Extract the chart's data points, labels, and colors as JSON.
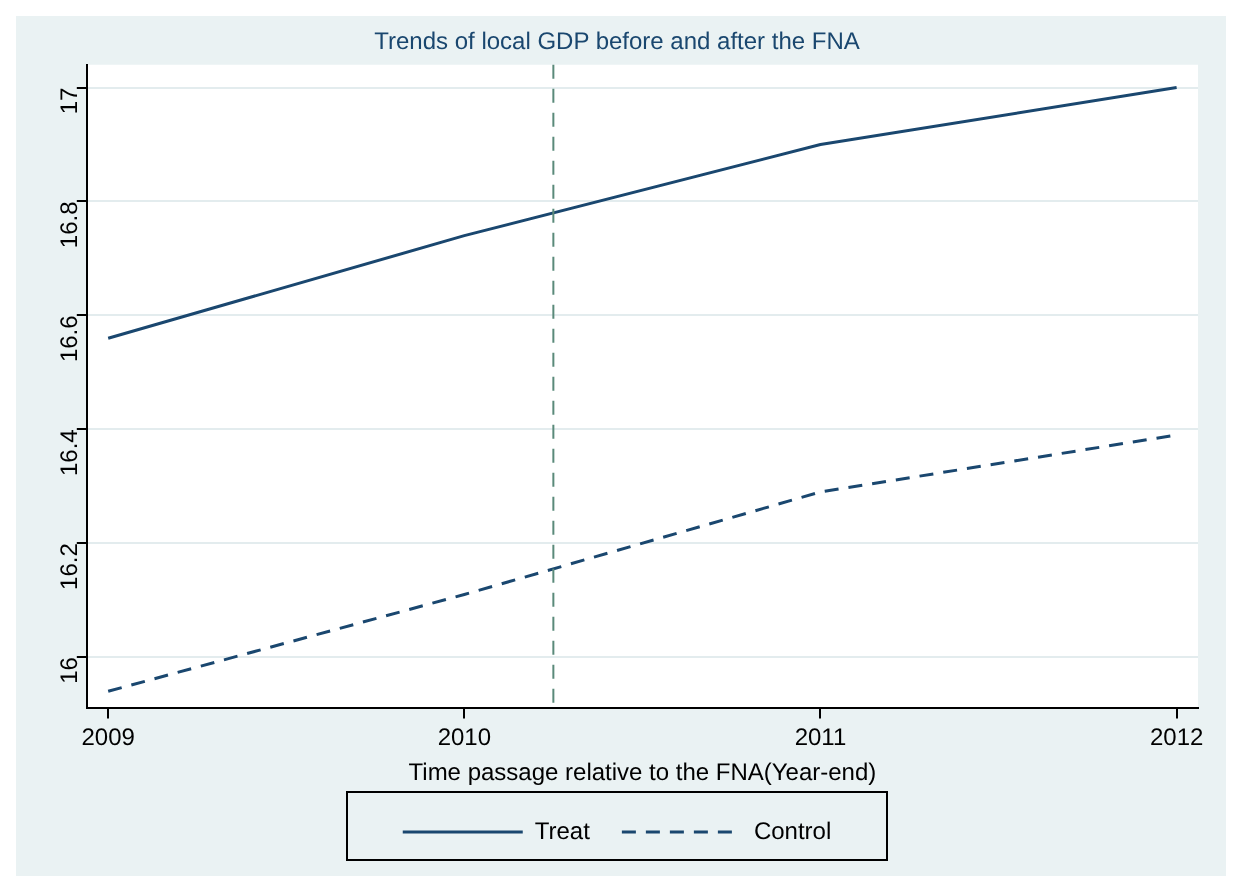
{
  "chart_data": {
    "type": "line",
    "title": "Trends of local GDP before and after the FNA",
    "xlabel": "Time passage relative to the FNA(Year-end)",
    "x": [
      2009,
      2010,
      2011,
      2012
    ],
    "series": [
      {
        "name": "Treat",
        "color": "#1a476f",
        "line_style": "solid",
        "values": [
          16.56,
          16.74,
          16.9,
          17.0
        ]
      },
      {
        "name": "Control",
        "color": "#1a476f",
        "line_style": "dashed",
        "values": [
          15.94,
          16.11,
          16.29,
          16.39
        ]
      }
    ],
    "xlim": [
      2008.94,
      2012.06
    ],
    "xticks": [
      2009,
      2010,
      2011,
      2012
    ],
    "ylim": [
      15.91,
      17.04
    ],
    "yticks": [
      16,
      16.2,
      16.4,
      16.6,
      16.8,
      17
    ],
    "ref_lines": [
      {
        "axis": "x",
        "value": 2010.25,
        "color": "#5a8a7a",
        "line_style": "dashed"
      }
    ],
    "grid": "y",
    "legend": "bottom",
    "marker": "none"
  }
}
